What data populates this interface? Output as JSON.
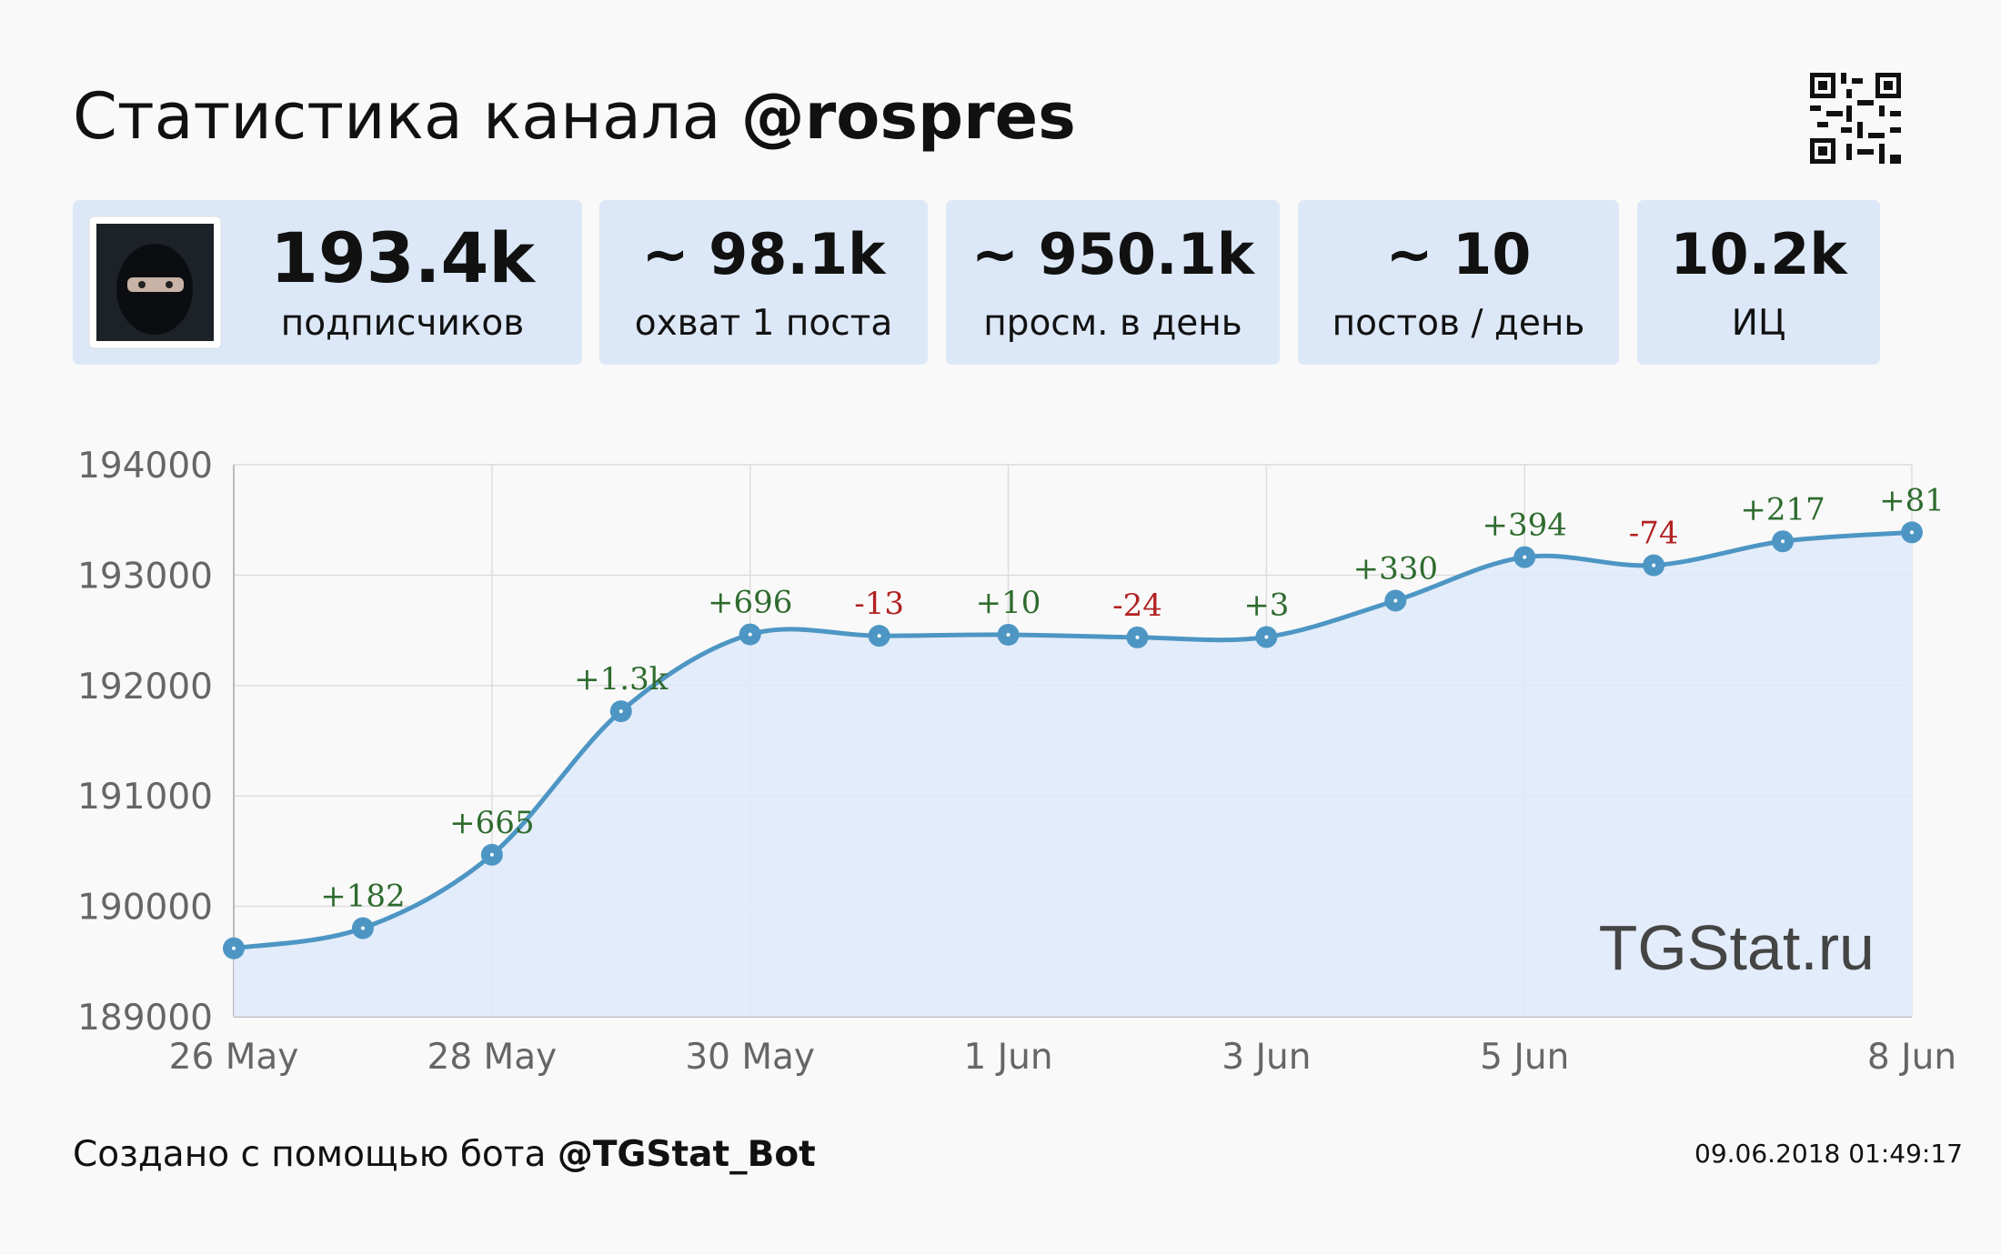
{
  "header": {
    "title": "Статистика канала",
    "channel": "@rospres"
  },
  "stats": [
    {
      "value": "193.4k",
      "label": "подписчиков"
    },
    {
      "value": "~ 98.1k",
      "label": "охват 1 поста"
    },
    {
      "value": "~ 950.1k",
      "label": "просм. в день"
    },
    {
      "value": "~ 10",
      "label": "постов / день"
    },
    {
      "value": "10.2k",
      "label": "ИЦ"
    }
  ],
  "chart_data": {
    "type": "line",
    "categories": [
      "26 May",
      null,
      "28 May",
      null,
      "30 May",
      null,
      "1 Jun",
      null,
      "3 Jun",
      null,
      "5 Jun",
      null,
      null,
      "8 Jun"
    ],
    "series": [
      {
        "name": "подписчики",
        "color": "#4d96c4",
        "fill": "#dfeafa",
        "values": [
          189620,
          189802,
          190467,
          191767,
          192463,
          192450,
          192460,
          192436,
          192439,
          192769,
          193163,
          193089,
          193306,
          193387
        ],
        "changes": [
          null,
          182,
          665,
          1300,
          696,
          -13,
          10,
          -24,
          3,
          330,
          394,
          -74,
          217,
          81
        ],
        "change_labels": [
          null,
          "+182",
          "+665",
          "+1.3k",
          "+696",
          "-13",
          "+10",
          "-24",
          "+3",
          "+330",
          "+394",
          "-74",
          "+217",
          "+81"
        ]
      }
    ],
    "ylim": [
      189000,
      194000
    ],
    "yticks": [
      189000,
      190000,
      191000,
      192000,
      193000,
      194000
    ],
    "grid": true,
    "positive_color": "#2e6b2e",
    "negative_color": "#b22222",
    "watermark": "TGStat.ru"
  },
  "footer": {
    "text": "Создано с помощью бота",
    "bot": "@TGStat_Bot",
    "timestamp": "09.06.2018 01:49:17"
  }
}
